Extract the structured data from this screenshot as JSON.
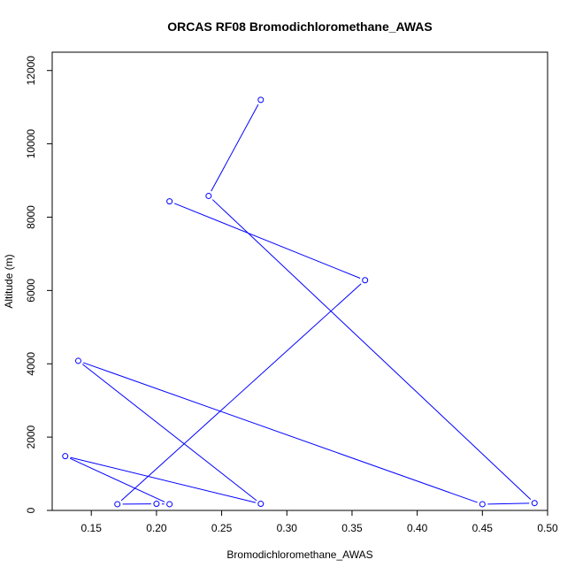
{
  "chart_data": {
    "type": "line",
    "title": "ORCAS RF08 Bromodichloromethane_AWAS",
    "xlabel": "Bromodichloromethane_AWAS",
    "ylabel": "Altitude (m)",
    "xlim": [
      0.12,
      0.5
    ],
    "ylim": [
      0,
      12500
    ],
    "x_ticks": [
      0.15,
      0.2,
      0.25,
      0.3,
      0.35,
      0.4,
      0.45,
      0.5
    ],
    "x_tick_labels": [
      "0.15",
      "0.20",
      "0.25",
      "0.30",
      "0.35",
      "0.40",
      "0.45",
      "0.50"
    ],
    "y_ticks": [
      0,
      2000,
      4000,
      6000,
      8000,
      10000,
      12000
    ],
    "y_tick_labels": [
      "0",
      "2000",
      "4000",
      "6000",
      "8000",
      "10000",
      "12000"
    ],
    "grid": false,
    "legend": "none",
    "series": [
      {
        "color": "#0000ff",
        "marker": "open-circle",
        "points": [
          {
            "x": 0.28,
            "y": 11200
          },
          {
            "x": 0.24,
            "y": 8580
          },
          {
            "x": 0.49,
            "y": 200
          },
          {
            "x": 0.45,
            "y": 170
          },
          {
            "x": 0.14,
            "y": 4080
          },
          {
            "x": 0.28,
            "y": 180
          },
          {
            "x": 0.13,
            "y": 1480
          },
          {
            "x": 0.21,
            "y": 170
          },
          {
            "x": 0.2,
            "y": 180
          },
          {
            "x": 0.17,
            "y": 170
          },
          {
            "x": 0.36,
            "y": 6280
          },
          {
            "x": 0.21,
            "y": 8430
          }
        ]
      }
    ]
  }
}
